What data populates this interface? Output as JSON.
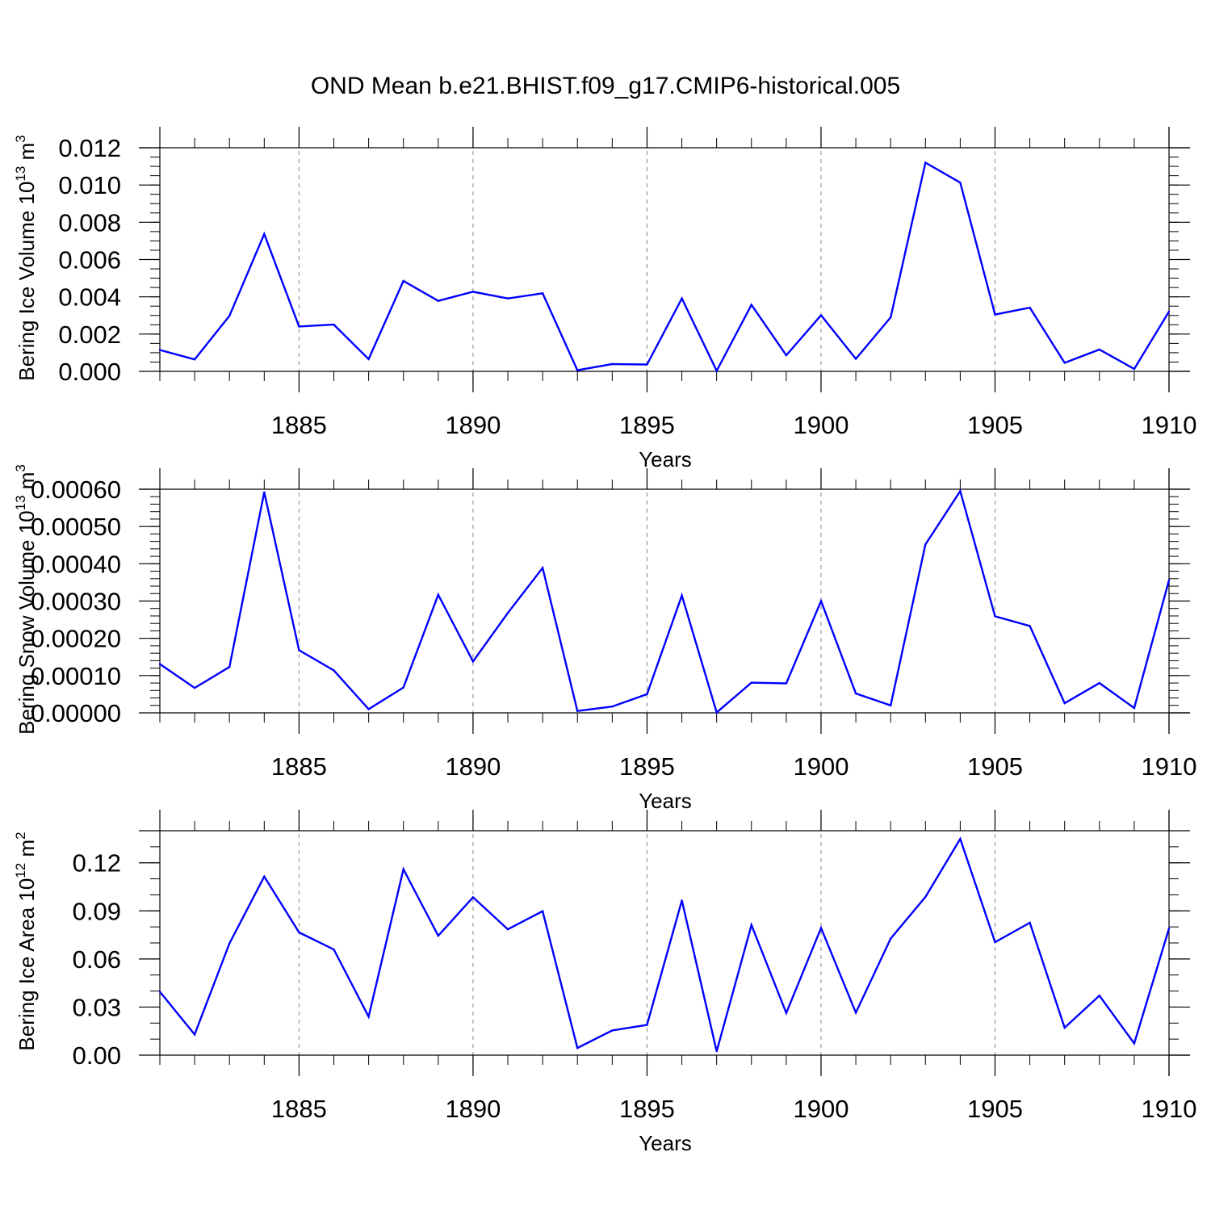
{
  "title": "OND Mean b.e21.BHIST.f09_g17.CMIP6-historical.005",
  "colors": {
    "line": "#0000ff",
    "axis": "#000000",
    "grid": "#888888"
  },
  "chart_data": [
    {
      "type": "line",
      "ylabel_main": "Bering Ice Volume 10",
      "ylabel_sup": "13",
      "ylabel_unit": "m",
      "ylabel_unit_sup": "3",
      "xlabel": "Years",
      "xlim": [
        1881,
        1910
      ],
      "ylim": [
        0,
        0.012
      ],
      "ymajor": [
        0,
        0.002,
        0.004,
        0.006,
        0.008,
        0.01,
        0.012
      ],
      "ytick_labels": [
        "0.000",
        "0.002",
        "0.004",
        "0.006",
        "0.008",
        "0.010",
        "0.012"
      ],
      "yminor_step": 0.0005,
      "xticks": [
        1885,
        1890,
        1895,
        1900,
        1905,
        1910
      ],
      "xtick_labels": [
        "1885",
        "1890",
        "1895",
        "1900",
        "1905",
        "1910"
      ],
      "x": [
        1881,
        1882,
        1883,
        1884,
        1885,
        1886,
        1887,
        1888,
        1889,
        1890,
        1891,
        1892,
        1893,
        1894,
        1895,
        1896,
        1897,
        1898,
        1899,
        1900,
        1901,
        1902,
        1903,
        1904,
        1905,
        1906,
        1907,
        1908,
        1909,
        1910
      ],
      "values": [
        0.00115,
        0.00064,
        0.00298,
        0.00737,
        0.00241,
        0.00251,
        0.00066,
        0.00485,
        0.00378,
        0.00427,
        0.00391,
        0.00419,
        6e-05,
        0.00039,
        0.00037,
        0.00391,
        3e-05,
        0.00357,
        0.00086,
        0.00301,
        0.00067,
        0.0029,
        0.0112,
        0.01013,
        0.00305,
        0.00342,
        0.00046,
        0.00117,
        0.00013,
        0.00321
      ]
    },
    {
      "type": "line",
      "ylabel_main": "Bering Snow Volume 10",
      "ylabel_sup": "13",
      "ylabel_unit": "m",
      "ylabel_unit_sup": "3",
      "xlabel": "Years",
      "xlim": [
        1881,
        1910
      ],
      "ylim": [
        0,
        0.0006
      ],
      "ymajor": [
        0,
        0.0001,
        0.0002,
        0.0003,
        0.0004,
        0.0005,
        0.0006
      ],
      "ytick_labels": [
        "0.00000",
        "0.00010",
        "0.00020",
        "0.00030",
        "0.00040",
        "0.00050",
        "0.00060"
      ],
      "yminor_step": 2e-05,
      "xticks": [
        1885,
        1890,
        1895,
        1900,
        1905,
        1910
      ],
      "xtick_labels": [
        "1885",
        "1890",
        "1895",
        "1900",
        "1905",
        "1910"
      ],
      "x": [
        1881,
        1882,
        1883,
        1884,
        1885,
        1886,
        1887,
        1888,
        1889,
        1890,
        1891,
        1892,
        1893,
        1894,
        1895,
        1896,
        1897,
        1898,
        1899,
        1900,
        1901,
        1902,
        1903,
        1904,
        1905,
        1906,
        1907,
        1908,
        1909,
        1910
      ],
      "values": [
        0.000131,
        6.7e-05,
        0.000123,
        0.000592,
        0.000168,
        0.000114,
        1e-05,
        6.8e-05,
        0.000317,
        0.000138,
        0.000268,
        0.000389,
        5e-06,
        1.7e-05,
        5e-05,
        0.000315,
        1e-06,
        8.1e-05,
        7.9e-05,
        0.0003,
        5.2e-05,
        2e-05,
        0.000452,
        0.000595,
        0.000259,
        0.000233,
        2.6e-05,
        8e-05,
        1.3e-05,
        0.000356
      ]
    },
    {
      "type": "line",
      "ylabel_main": "Bering Ice Area 10",
      "ylabel_sup": "12",
      "ylabel_unit": "m",
      "ylabel_unit_sup": "2",
      "xlabel": "Years",
      "xlim": [
        1881,
        1910
      ],
      "ylim": [
        0,
        0.14
      ],
      "ymajor": [
        0,
        0.03,
        0.06,
        0.09,
        0.12
      ],
      "ytick_labels": [
        "0.00",
        "0.03",
        "0.06",
        "0.09",
        "0.12"
      ],
      "yminor_step": 0.01,
      "xticks": [
        1885,
        1890,
        1895,
        1900,
        1905,
        1910
      ],
      "xtick_labels": [
        "1885",
        "1890",
        "1895",
        "1900",
        "1905",
        "1910"
      ],
      "x": [
        1881,
        1882,
        1883,
        1884,
        1885,
        1886,
        1887,
        1888,
        1889,
        1890,
        1891,
        1892,
        1893,
        1894,
        1895,
        1896,
        1897,
        1898,
        1899,
        1900,
        1901,
        1902,
        1903,
        1904,
        1905,
        1906,
        1907,
        1908,
        1909,
        1910
      ],
      "values": [
        0.0396,
        0.0129,
        0.0697,
        0.1114,
        0.0766,
        0.0659,
        0.024,
        0.116,
        0.0745,
        0.0985,
        0.0785,
        0.0898,
        0.0045,
        0.0154,
        0.0189,
        0.0965,
        0.0024,
        0.0812,
        0.0263,
        0.0793,
        0.0265,
        0.0727,
        0.0987,
        0.1349,
        0.0705,
        0.0826,
        0.0171,
        0.0371,
        0.0073,
        0.079
      ]
    }
  ]
}
